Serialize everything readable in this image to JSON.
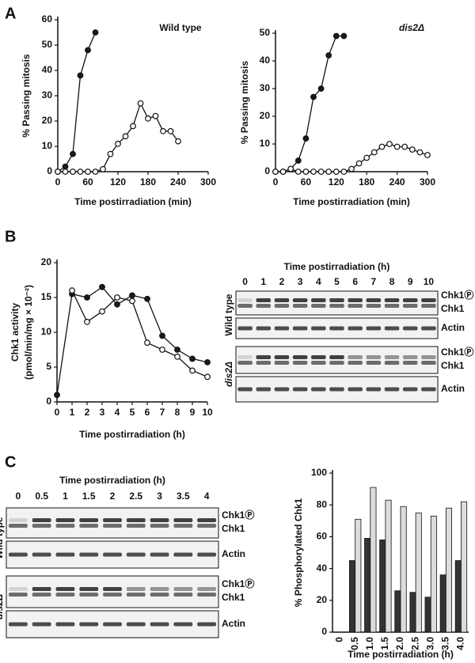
{
  "panel_labels": [
    "A",
    "B",
    "C"
  ],
  "chart_data": [
    {
      "type": "line",
      "title": "Wild type",
      "y_label": [
        "% Passing mitosis"
      ],
      "x_label": "Time postirradiation (min)",
      "xlim": [
        0,
        300
      ],
      "xticks": [
        0,
        60,
        120,
        180,
        240,
        300
      ],
      "ylim": [
        0,
        60
      ],
      "yticks": [
        0,
        10,
        20,
        30,
        40,
        50,
        60
      ],
      "series": [
        {
          "color": "#1a1a1a",
          "x": [
            0,
            15,
            30,
            45,
            60,
            75
          ],
          "values": [
            0,
            2,
            7,
            38,
            48,
            55
          ]
        },
        {
          "color": "#ffffff",
          "x": [
            0,
            15,
            30,
            45,
            60,
            75,
            90,
            105,
            120,
            135,
            150,
            165,
            180,
            195,
            210,
            225,
            240
          ],
          "values": [
            0,
            0,
            0,
            0,
            0,
            0,
            1,
            7,
            11,
            14,
            18,
            27,
            21,
            22,
            16,
            16,
            12
          ]
        }
      ]
    },
    {
      "type": "line",
      "title": "dis2Δ",
      "y_label": [
        "% Passing mitosis"
      ],
      "x_label": "Time postirradiation (min)",
      "xlim": [
        0,
        300
      ],
      "xticks": [
        0,
        60,
        120,
        180,
        240,
        300
      ],
      "ylim": [
        0,
        50
      ],
      "yticks": [
        0,
        10,
        20,
        30,
        40,
        50
      ],
      "series": [
        {
          "color": "#1a1a1a",
          "x": [
            0,
            15,
            30,
            45,
            60,
            75,
            90,
            105,
            120,
            135
          ],
          "values": [
            0,
            0,
            1,
            4,
            12,
            27,
            30,
            42,
            49,
            49
          ]
        },
        {
          "color": "#ffffff",
          "x": [
            0,
            15,
            30,
            45,
            60,
            75,
            90,
            105,
            120,
            135,
            150,
            165,
            180,
            195,
            210,
            225,
            240,
            255,
            270,
            285,
            300
          ],
          "values": [
            0,
            0,
            1,
            0,
            0,
            0,
            0,
            0,
            0,
            0,
            1,
            3,
            5,
            7,
            9,
            10,
            9,
            9,
            8,
            7,
            6
          ]
        }
      ]
    },
    {
      "type": "line",
      "y_label": [
        "Chk1 activity",
        "(pmol/min/mg × 10⁻²)"
      ],
      "x_label": "Time postirradiation (h)",
      "xlim": [
        0,
        10
      ],
      "xticks": [
        0,
        1,
        2,
        3,
        4,
        5,
        6,
        7,
        8,
        9,
        10
      ],
      "ylim": [
        0,
        20
      ],
      "yticks": [
        0,
        5,
        10,
        15,
        20
      ],
      "series": [
        {
          "color": "#1a1a1a",
          "x": [
            0,
            1,
            2,
            3,
            4,
            5,
            6,
            7,
            8,
            9,
            10
          ],
          "values": [
            1,
            15.5,
            15,
            16.5,
            14,
            15.3,
            14.8,
            9.5,
            7.5,
            6.2,
            5.7
          ]
        },
        {
          "color": "#ffffff",
          "x": [
            0,
            1,
            2,
            3,
            4,
            5,
            6,
            7,
            8,
            9,
            10
          ],
          "values": [
            null,
            16,
            11.5,
            13,
            15,
            14.5,
            8.5,
            7.5,
            6.5,
            4.5,
            3.6
          ]
        }
      ]
    },
    {
      "type": "bar",
      "y_label": [
        "% Phosphorylated Chk1"
      ],
      "x_label": "Time postirradiation (h)",
      "categories": [
        "0",
        "0.5",
        "1.0",
        "1.5",
        "2.0",
        "2.5",
        "3.0",
        "3.5",
        "4.0"
      ],
      "ylim": [
        0,
        100
      ],
      "yticks": [
        0,
        20,
        40,
        60,
        80,
        100
      ],
      "series": [
        {
          "color": "#333333",
          "values": [
            null,
            45,
            59,
            58,
            26,
            25,
            22,
            36,
            45
          ]
        },
        {
          "color": "#dcdcdc",
          "values": [
            null,
            71,
            91,
            83,
            79,
            75,
            73,
            78,
            82
          ]
        }
      ]
    }
  ],
  "blots": [
    {
      "title": "Time postirradiation (h)",
      "lanes": [
        0,
        1,
        2,
        3,
        4,
        5,
        6,
        7,
        8,
        9,
        10
      ],
      "groups": [
        {
          "name": "Wild type",
          "chk1_labels": [
            "Chk1Ⓟ",
            "Chk1"
          ],
          "actin_label": "Actin"
        },
        {
          "name": "dis2Δ",
          "chk1_labels": [
            "Chk1Ⓟ",
            "Chk1"
          ],
          "actin_label": "Actin"
        }
      ]
    },
    {
      "title": "Time postirradiation (h)",
      "lanes": [
        0,
        0.5,
        1,
        1.5,
        2,
        2.5,
        3,
        3.5,
        4
      ],
      "groups": [
        {
          "name": "Wild type",
          "chk1_labels": [
            "Chk1Ⓟ",
            "Chk1"
          ],
          "actin_label": "Actin"
        },
        {
          "name": "dis2Δ",
          "chk1_labels": [
            "Chk1Ⓟ",
            "Chk1"
          ],
          "actin_label": "Actin"
        }
      ]
    }
  ]
}
